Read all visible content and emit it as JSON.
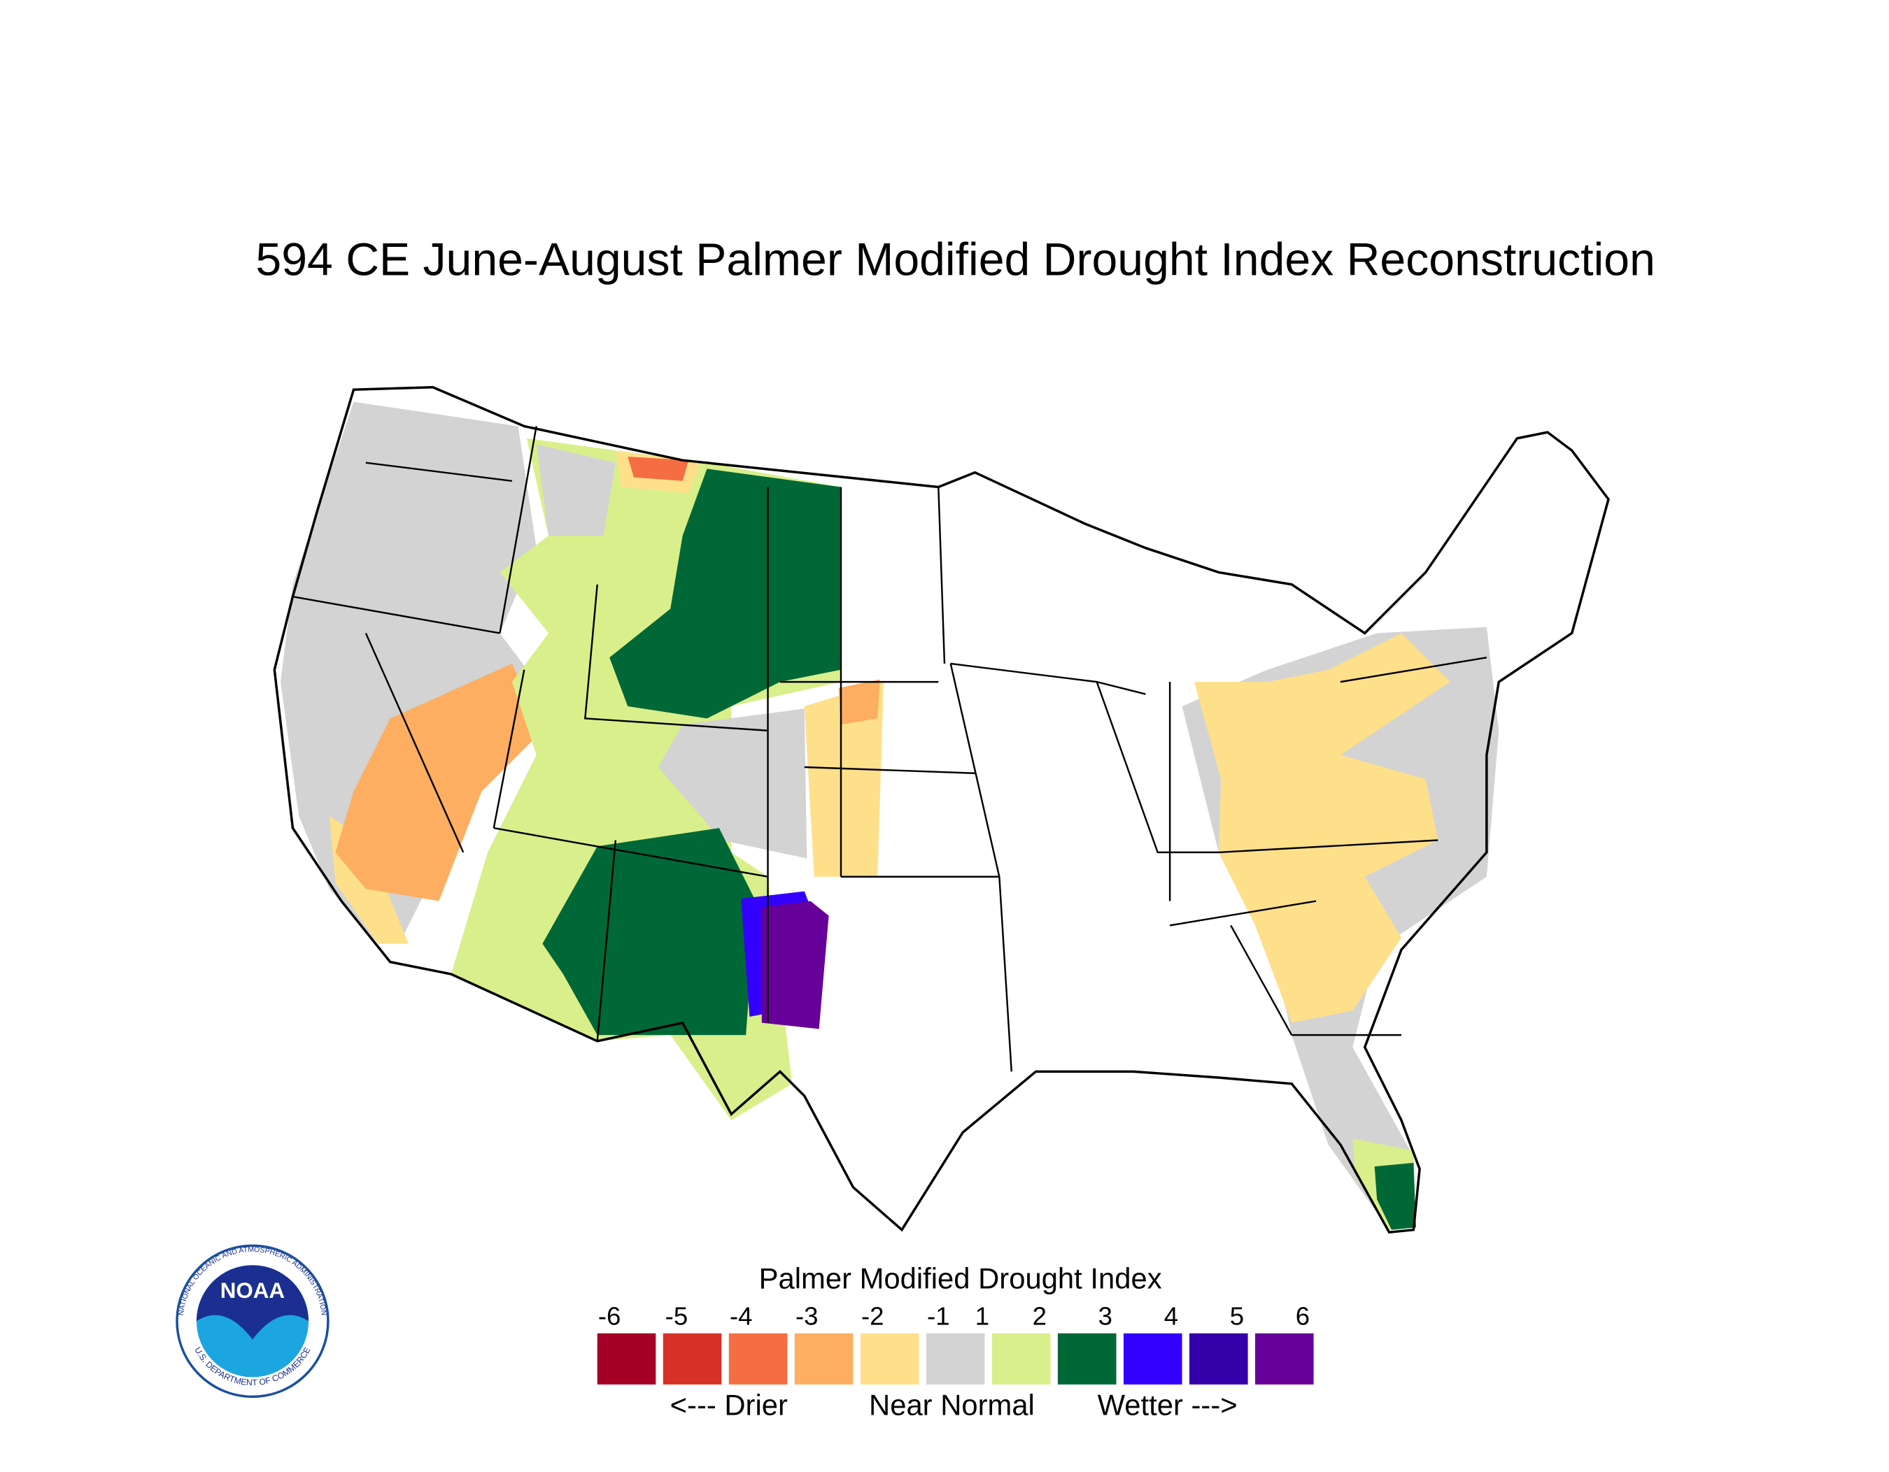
{
  "title": "594 CE  June-August  Palmer Modified Drought Index Reconstruction",
  "legend": {
    "title": "Palmer Modified Drought Index",
    "ticks": [
      -6,
      -5,
      -4,
      -3,
      -2,
      -1,
      1,
      2,
      3,
      4,
      5,
      6
    ],
    "colors": [
      "#a50026",
      "#d73027",
      "#f46d43",
      "#fdae61",
      "#fee08b",
      "#d3d3d3",
      "#d9ef8b",
      "#006837",
      "#3300ff",
      "#3300aa",
      "#660099"
    ],
    "captions": [
      "<--- Drier",
      "Near Normal",
      "Wetter --->"
    ]
  },
  "logo": {
    "text": "NOAA",
    "ring_text": "NATIONAL OCEANIC AND ATMOSPHERIC ADMINISTRATION",
    "bottom_text": "U.S. DEPARTMENT OF COMMERCE"
  }
}
